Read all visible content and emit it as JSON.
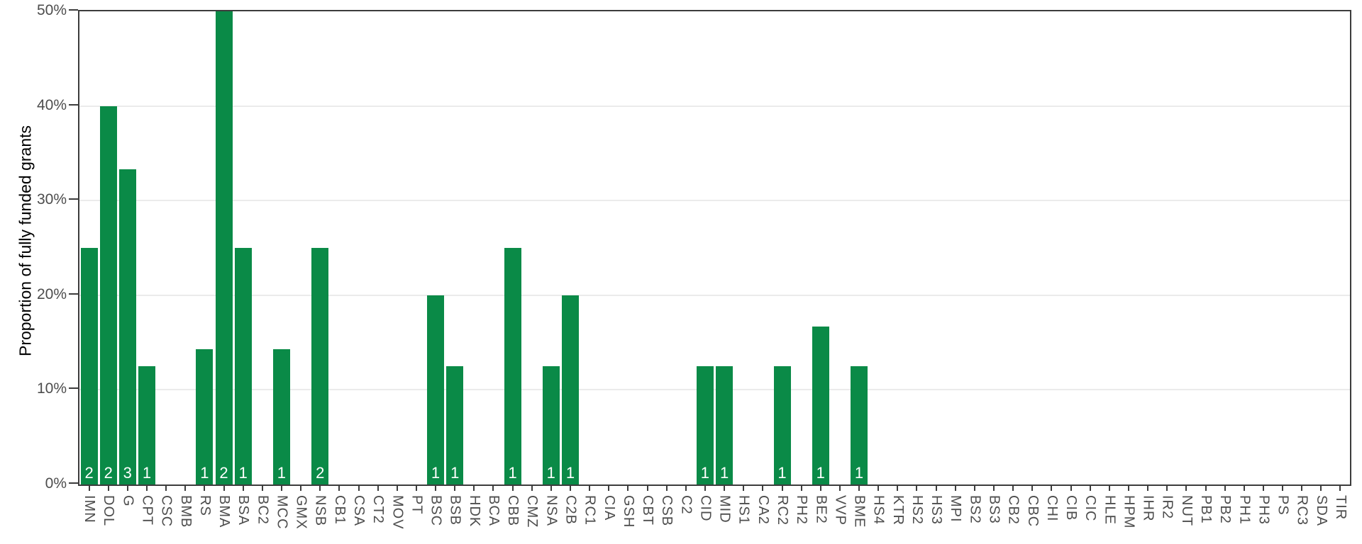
{
  "chart_data": {
    "type": "bar",
    "title": "",
    "xlabel": "",
    "ylabel": "Proportion of fully funded grants",
    "ylim": [
      0,
      50
    ],
    "grid": "horizontal-major-only",
    "legend": "none",
    "yticks": [
      {
        "value": 0,
        "label": "0%"
      },
      {
        "value": 10,
        "label": "10%"
      },
      {
        "value": 20,
        "label": "20%"
      },
      {
        "value": 30,
        "label": "30%"
      },
      {
        "value": 40,
        "label": "40%"
      },
      {
        "value": 50,
        "label": "50%"
      }
    ],
    "categories": [
      "IMN",
      "DOL",
      "G",
      "CPT",
      "CSC",
      "BMB",
      "RS",
      "BMA",
      "BSA",
      "BC2",
      "MCC",
      "GMX",
      "NSB",
      "CB1",
      "CSA",
      "CT2",
      "MOV",
      "PT",
      "BSC",
      "BSB",
      "HDK",
      "BCA",
      "CBB",
      "CMZ",
      "NSA",
      "C2B",
      "RC1",
      "CIA",
      "GSH",
      "CBT",
      "CSB",
      "C2",
      "CID",
      "MID",
      "HS1",
      "CA2",
      "RC2",
      "PH2",
      "BE2",
      "VVP",
      "BME",
      "HS4",
      "KTR",
      "HS2",
      "HS3",
      "MPI",
      "BS2",
      "BS3",
      "CB2",
      "CBC",
      "CHI",
      "CIB",
      "CIC",
      "HLE",
      "HPM",
      "IHR",
      "IR2",
      "NUT",
      "PB1",
      "PB2",
      "PH1",
      "PH3",
      "PS",
      "RC3",
      "SDA",
      "TIR"
    ],
    "values_percent": [
      25,
      40,
      33.3,
      12.5,
      0,
      0,
      14.3,
      50,
      25,
      0,
      14.3,
      0,
      25,
      0,
      0,
      0,
      0,
      0,
      20,
      12.5,
      0,
      0,
      25,
      0,
      12.5,
      20,
      0,
      0,
      0,
      0,
      0,
      0,
      12.5,
      12.5,
      0,
      0,
      12.5,
      0,
      16.7,
      0,
      12.5,
      0,
      0,
      0,
      0,
      0,
      0,
      0,
      0,
      0,
      0,
      0,
      0,
      0,
      0,
      0,
      0,
      0,
      0,
      0,
      0,
      0,
      0,
      0,
      0,
      0
    ],
    "bar_count_labels": [
      "2",
      "2",
      "3",
      "1",
      "",
      "",
      "1",
      "2",
      "1",
      "",
      "1",
      "",
      "2",
      "",
      "",
      "",
      "",
      "",
      "1",
      "1",
      "",
      "",
      "1",
      "",
      "1",
      "1",
      "",
      "",
      "",
      "",
      "",
      "",
      "1",
      "1",
      "",
      "",
      "1",
      "",
      "1",
      "",
      "1",
      "",
      "",
      "",
      "",
      "",
      "",
      "",
      "",
      "",
      "",
      "",
      "",
      "",
      "",
      "",
      "",
      "",
      "",
      "",
      "",
      "",
      "",
      "",
      "",
      ""
    ]
  },
  "colors": {
    "bar": "#0a8a47",
    "bar_count_text": "#ffffff",
    "gridline": "#ebebeb",
    "axis_border": "#3c3c3c",
    "tick_mark": "#3c3c3c",
    "tick_label_text": "#4d4d4d",
    "axis_title_text": "#000000",
    "background": "#ffffff"
  }
}
